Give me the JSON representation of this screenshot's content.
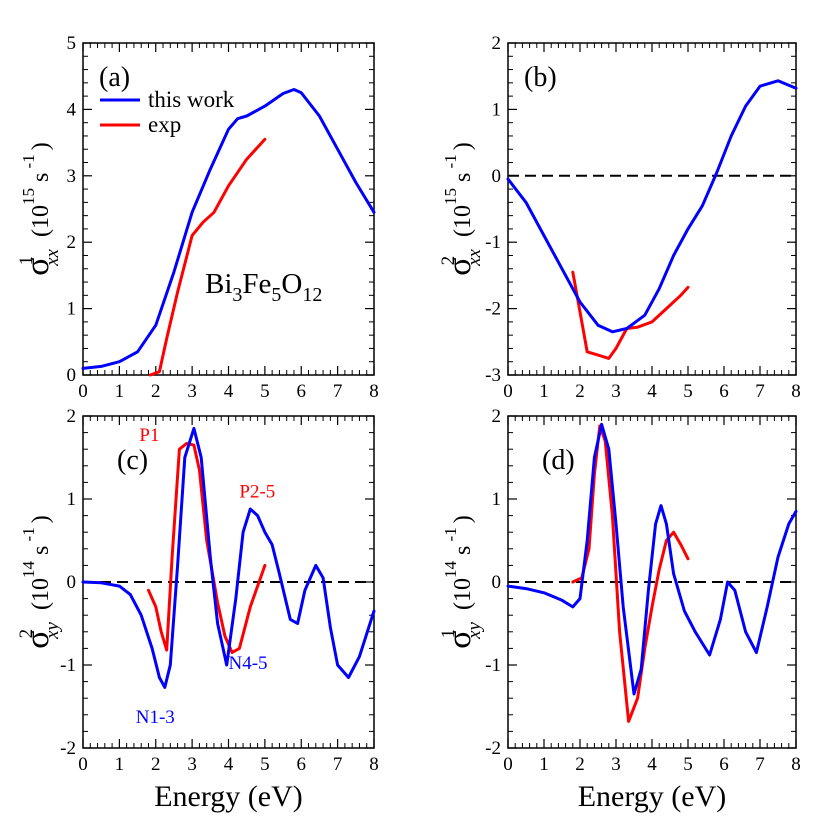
{
  "colors": {
    "theory": "#0000ff",
    "exp": "#ff0000",
    "axis": "#000000",
    "zero": "#000000"
  },
  "legend": {
    "theory": "this work",
    "exp": "exp"
  },
  "compound": {
    "base": "Bi",
    "s1": "3",
    "mid": "Fe",
    "s2": "5",
    "end": "O",
    "s3": "12"
  },
  "chart_data": [
    {
      "type": "line",
      "panel": "(a)",
      "ylabel": {
        "sigma": "σ",
        "sup": "1",
        "sub": "xx",
        "unit": "(10",
        "unit_sup": "15",
        "unit_s": " s",
        "unit_sup2": " -1",
        "unit_close": ")"
      },
      "xlabel": "",
      "xlim": [
        0,
        8
      ],
      "ylim": [
        0,
        5
      ],
      "xticks": [
        0,
        1,
        2,
        3,
        4,
        5,
        6,
        7,
        8
      ],
      "yticks": [
        0,
        1,
        2,
        3,
        4,
        5
      ],
      "zero_line": false,
      "series": [
        {
          "name": "this work",
          "color": "#0000ff",
          "x": [
            0,
            0.5,
            1,
            1.5,
            2,
            2.5,
            3,
            3.5,
            4,
            4.25,
            4.5,
            5,
            5.5,
            5.8,
            6,
            6.5,
            7,
            7.5,
            8
          ],
          "y": [
            0.1,
            0.13,
            0.2,
            0.35,
            0.75,
            1.55,
            2.45,
            3.1,
            3.7,
            3.86,
            3.9,
            4.05,
            4.24,
            4.3,
            4.25,
            3.9,
            3.4,
            2.9,
            2.45
          ]
        },
        {
          "name": "exp",
          "color": "#ff0000",
          "x": [
            1.85,
            2.1,
            2.3,
            2.6,
            3.0,
            3.3,
            3.6,
            4.0,
            4.5,
            5.0
          ],
          "y": [
            0,
            0.05,
            0.55,
            1.25,
            2.1,
            2.3,
            2.45,
            2.85,
            3.25,
            3.55
          ]
        }
      ],
      "annotations": []
    },
    {
      "type": "line",
      "panel": "(b)",
      "ylabel": {
        "sigma": "σ",
        "sup": "2",
        "sub": "xx",
        "unit": "(10",
        "unit_sup": "15",
        "unit_s": " s",
        "unit_sup2": " -1",
        "unit_close": ")"
      },
      "xlabel": "",
      "xlim": [
        0,
        8
      ],
      "ylim": [
        -3,
        2
      ],
      "xticks": [
        0,
        1,
        2,
        3,
        4,
        5,
        6,
        7,
        8
      ],
      "yticks": [
        -3,
        -2,
        -1,
        0,
        1,
        2
      ],
      "zero_line": true,
      "series": [
        {
          "name": "this work",
          "color": "#0000ff",
          "x": [
            0,
            0.5,
            1,
            1.5,
            2,
            2.5,
            2.9,
            3.3,
            3.8,
            4.2,
            4.6,
            5,
            5.4,
            5.8,
            6.2,
            6.6,
            7,
            7.5,
            8
          ],
          "y": [
            -0.05,
            -0.4,
            -0.9,
            -1.4,
            -1.9,
            -2.25,
            -2.35,
            -2.3,
            -2.1,
            -1.7,
            -1.2,
            -0.8,
            -0.45,
            0.05,
            0.6,
            1.05,
            1.35,
            1.43,
            1.32
          ]
        },
        {
          "name": "exp",
          "color": "#ff0000",
          "x": [
            1.8,
            2.0,
            2.2,
            2.5,
            2.8,
            3.0,
            3.3,
            3.6,
            4.0,
            4.4,
            4.8,
            5.0
          ],
          "y": [
            -1.45,
            -2.05,
            -2.65,
            -2.7,
            -2.75,
            -2.6,
            -2.3,
            -2.28,
            -2.2,
            -2.0,
            -1.8,
            -1.68
          ]
        }
      ],
      "annotations": []
    },
    {
      "type": "line",
      "panel": "(c)",
      "ylabel": {
        "sigma": "σ",
        "sup": "2",
        "sub": "xy",
        "unit": "(10",
        "unit_sup": "14",
        "unit_s": " s",
        "unit_sup2": " -1",
        "unit_close": ")"
      },
      "xlabel": "Energy  (eV)",
      "xlim": [
        0,
        8
      ],
      "ylim": [
        -2,
        2
      ],
      "xticks": [
        0,
        1,
        2,
        3,
        4,
        5,
        6,
        7,
        8
      ],
      "yticks": [
        -2,
        -1,
        0,
        1,
        2
      ],
      "zero_line": true,
      "series": [
        {
          "name": "this work",
          "color": "#0000ff",
          "x": [
            0,
            0.5,
            1,
            1.3,
            1.6,
            1.9,
            2.1,
            2.25,
            2.4,
            2.6,
            2.8,
            3.05,
            3.25,
            3.5,
            3.7,
            3.95,
            4.2,
            4.4,
            4.6,
            4.8,
            5.0,
            5.2,
            5.4,
            5.7,
            5.9,
            6.1,
            6.4,
            6.6,
            6.8,
            7.0,
            7.3,
            7.6,
            8.0
          ],
          "y": [
            0,
            -0.01,
            -0.05,
            -0.15,
            -0.4,
            -0.8,
            -1.15,
            -1.27,
            -1.0,
            0.2,
            1.5,
            1.85,
            1.5,
            0.3,
            -0.5,
            -1.0,
            -0.2,
            0.6,
            0.88,
            0.8,
            0.6,
            0.45,
            0.1,
            -0.45,
            -0.5,
            -0.1,
            0.2,
            0.05,
            -0.55,
            -1.0,
            -1.15,
            -0.9,
            -0.35
          ]
        },
        {
          "name": "exp",
          "color": "#ff0000",
          "x": [
            1.8,
            2.0,
            2.15,
            2.3,
            2.45,
            2.65,
            2.85,
            3.05,
            3.2,
            3.4,
            3.7,
            3.9,
            4.1,
            4.3,
            4.6,
            5.0
          ],
          "y": [
            -0.1,
            -0.3,
            -0.6,
            -0.82,
            0.3,
            1.6,
            1.67,
            1.65,
            1.35,
            0.5,
            -0.25,
            -0.65,
            -0.85,
            -0.8,
            -0.3,
            0.2
          ]
        }
      ],
      "annotations": [
        {
          "text": "P1",
          "x": 1.55,
          "y": 1.7,
          "color": "#ff0000"
        },
        {
          "text": "P2-5",
          "x": 4.3,
          "y": 1.02,
          "color": "#ff0000"
        },
        {
          "text": "N1-3",
          "x": 1.45,
          "y": -1.7,
          "color": "#0000ff"
        },
        {
          "text": "N4-5",
          "x": 4.0,
          "y": -1.05,
          "color": "#0000ff"
        }
      ]
    },
    {
      "type": "line",
      "panel": "(d)",
      "ylabel": {
        "sigma": "σ",
        "sup": "1",
        "sub": "xy",
        "unit": "(10",
        "unit_sup": "14",
        "unit_s": " s",
        "unit_sup2": " -1",
        "unit_close": ")"
      },
      "xlabel": "Energy (eV)",
      "xlim": [
        0,
        8
      ],
      "ylim": [
        -2,
        2
      ],
      "xticks": [
        0,
        1,
        2,
        3,
        4,
        5,
        6,
        7,
        8
      ],
      "yticks": [
        -2,
        -1,
        0,
        1,
        2
      ],
      "zero_line": true,
      "series": [
        {
          "name": "this work",
          "color": "#0000ff",
          "x": [
            0,
            0.5,
            1,
            1.5,
            1.8,
            2.0,
            2.2,
            2.4,
            2.6,
            2.8,
            3.0,
            3.2,
            3.5,
            3.7,
            3.9,
            4.1,
            4.25,
            4.4,
            4.6,
            4.9,
            5.2,
            5.6,
            5.9,
            6.1,
            6.3,
            6.6,
            6.9,
            7.2,
            7.5,
            7.8,
            8.0
          ],
          "y": [
            -0.05,
            -0.08,
            -0.13,
            -0.22,
            -0.3,
            -0.2,
            0.5,
            1.5,
            1.9,
            1.6,
            0.7,
            -0.3,
            -1.35,
            -1.05,
            -0.1,
            0.7,
            0.92,
            0.7,
            0.1,
            -0.35,
            -0.6,
            -0.88,
            -0.45,
            0.0,
            -0.1,
            -0.6,
            -0.85,
            -0.3,
            0.3,
            0.7,
            0.85
          ]
        },
        {
          "name": "exp",
          "color": "#ff0000",
          "x": [
            1.8,
            2.05,
            2.25,
            2.4,
            2.55,
            2.7,
            2.9,
            3.1,
            3.35,
            3.6,
            3.8,
            4.0,
            4.2,
            4.4,
            4.6,
            4.8,
            5.0
          ],
          "y": [
            0,
            0.05,
            0.4,
            1.3,
            1.88,
            1.7,
            0.8,
            -0.6,
            -1.68,
            -1.4,
            -0.8,
            -0.3,
            0.15,
            0.5,
            0.6,
            0.45,
            0.28
          ]
        }
      ],
      "annotations": []
    }
  ]
}
